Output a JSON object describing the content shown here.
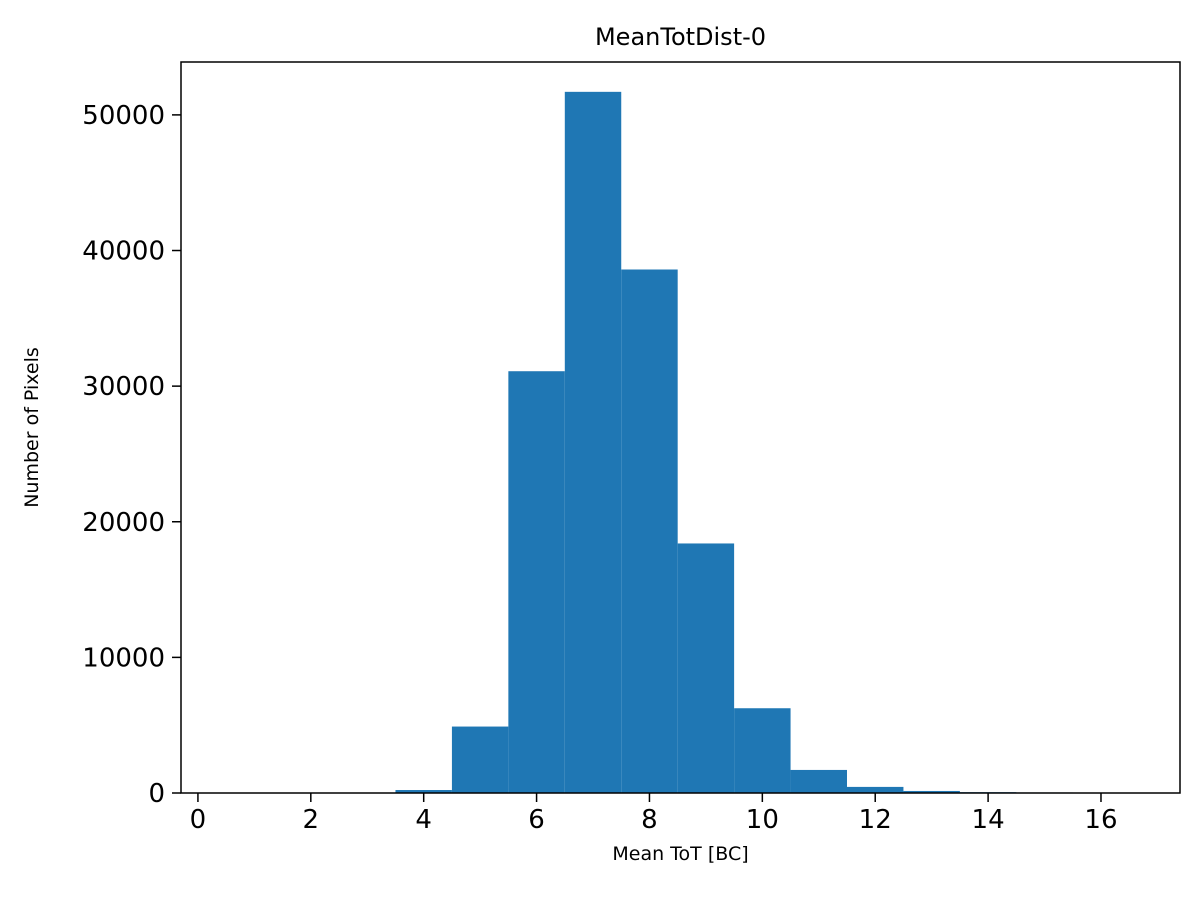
{
  "chart_data": {
    "type": "bar",
    "title": "MeanTotDist-0",
    "xlabel": "Mean ToT [BC]",
    "ylabel": "Number of Pixels",
    "xlim": [
      -0.3,
      17.4
    ],
    "ylim": [
      0,
      53900
    ],
    "x_ticks": [
      0,
      2,
      4,
      6,
      8,
      10,
      12,
      14,
      16
    ],
    "y_ticks": [
      0,
      10000,
      20000,
      30000,
      40000,
      50000
    ],
    "bar_color": "#1f77b4",
    "grid": false,
    "legend": null,
    "bins": [
      {
        "x0": 3.5,
        "x1": 4.5,
        "count": 220
      },
      {
        "x0": 4.5,
        "x1": 5.5,
        "count": 4900
      },
      {
        "x0": 5.5,
        "x1": 6.5,
        "count": 31100
      },
      {
        "x0": 6.5,
        "x1": 7.5,
        "count": 51700
      },
      {
        "x0": 7.5,
        "x1": 8.5,
        "count": 38600
      },
      {
        "x0": 8.5,
        "x1": 9.5,
        "count": 18400
      },
      {
        "x0": 9.5,
        "x1": 10.5,
        "count": 6250
      },
      {
        "x0": 10.5,
        "x1": 11.5,
        "count": 1700
      },
      {
        "x0": 11.5,
        "x1": 12.5,
        "count": 450
      },
      {
        "x0": 12.5,
        "x1": 13.5,
        "count": 150
      },
      {
        "x0": 13.5,
        "x1": 14.5,
        "count": 60
      },
      {
        "x0": 14.5,
        "x1": 15.5,
        "count": 40
      }
    ]
  }
}
